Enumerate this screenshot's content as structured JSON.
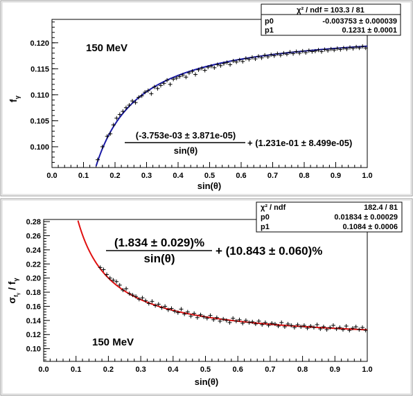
{
  "chart_data": [
    {
      "type": "scatter",
      "xlabel": "sin(θ)",
      "ylabel": "f",
      "ylabel_sub": "γ",
      "xlim": [
        0.0,
        1.0
      ],
      "ylim": [
        0.096,
        0.1245
      ],
      "xticks": [
        "0.0",
        "0.1",
        "0.2",
        "0.3",
        "0.4",
        "0.5",
        "0.6",
        "0.7",
        "0.8",
        "0.9",
        "1.0"
      ],
      "yticks": [
        "0.100",
        "0.105",
        "0.110",
        "0.115",
        "0.120"
      ],
      "yticks_values": [
        0.1,
        0.105,
        0.11,
        0.115,
        0.12
      ],
      "label": "150 MeV",
      "formula_numerator": "(-3.753e-03 ± 3.871e-05)",
      "formula_denominator": "sin(θ)",
      "formula_rest": "+ (1.231e-01 ± 8.499e-05)",
      "stats": [
        {
          "name": "χ² / ndf = 103.3 / 81",
          "value": ""
        },
        {
          "name": "p0",
          "value": "-0.003753 ± 0.000039"
        },
        {
          "name": "p1",
          "value": "0.1231 ± 0.0001"
        }
      ],
      "fit": {
        "form": "p0/sin(θ) + p1",
        "p0": -0.003753,
        "p1": 0.1231,
        "color": "#1a1aa6"
      },
      "points": {
        "x": [
          0.145,
          0.16,
          0.175,
          0.185,
          0.195,
          0.205,
          0.215,
          0.225,
          0.235,
          0.245,
          0.255,
          0.265,
          0.275,
          0.285,
          0.295,
          0.305,
          0.315,
          0.325,
          0.335,
          0.345,
          0.355,
          0.365,
          0.375,
          0.385,
          0.395,
          0.405,
          0.415,
          0.425,
          0.435,
          0.445,
          0.455,
          0.465,
          0.475,
          0.485,
          0.495,
          0.505,
          0.515,
          0.525,
          0.535,
          0.545,
          0.555,
          0.565,
          0.575,
          0.585,
          0.595,
          0.605,
          0.615,
          0.625,
          0.635,
          0.645,
          0.655,
          0.665,
          0.675,
          0.685,
          0.695,
          0.705,
          0.715,
          0.725,
          0.735,
          0.745,
          0.755,
          0.765,
          0.775,
          0.785,
          0.795,
          0.805,
          0.815,
          0.825,
          0.835,
          0.845,
          0.855,
          0.865,
          0.875,
          0.885,
          0.895,
          0.905,
          0.915,
          0.925,
          0.935,
          0.945,
          0.955,
          0.965,
          0.975,
          0.985,
          0.995
        ],
        "y": [
          0.0975,
          0.1,
          0.102,
          0.1025,
          0.1042,
          0.1055,
          0.1062,
          0.1068,
          0.1075,
          0.108,
          0.1088,
          0.1085,
          0.1095,
          0.1098,
          0.1105,
          0.1108,
          0.1102,
          0.1115,
          0.1112,
          0.1118,
          0.1122,
          0.1128,
          0.112,
          0.113,
          0.1132,
          0.1135,
          0.1138,
          0.1134,
          0.1142,
          0.1145,
          0.1139,
          0.1148,
          0.1151,
          0.1147,
          0.1153,
          0.1155,
          0.1152,
          0.1158,
          0.1156,
          0.116,
          0.1162,
          0.1158,
          0.1165,
          0.1163,
          0.1167,
          0.1164,
          0.117,
          0.1168,
          0.1172,
          0.1169,
          0.1174,
          0.1171,
          0.1176,
          0.1173,
          0.1177,
          0.1175,
          0.1179,
          0.1176,
          0.118,
          0.1178,
          0.1182,
          0.1179,
          0.1183,
          0.118,
          0.1184,
          0.1181,
          0.1185,
          0.1183,
          0.1184,
          0.1186,
          0.1183,
          0.1187,
          0.1185,
          0.1188,
          0.1186,
          0.1189,
          0.1187,
          0.119,
          0.1188,
          0.1191,
          0.1189,
          0.1192,
          0.119,
          0.1193,
          0.119
        ]
      }
    },
    {
      "type": "scatter",
      "xlabel": "sin(θ)",
      "ylabel": "σ",
      "ylabel_sub_sigma": "f",
      "ylabel_sub_sigma2": "γ",
      "ylabel_rest": " / f",
      "ylabel_sub": "γ",
      "xlim": [
        0.0,
        1.0
      ],
      "ylim": [
        0.082,
        0.283
      ],
      "xticks": [
        "0.0",
        "0.1",
        "0.2",
        "0.3",
        "0.4",
        "0.5",
        "0.6",
        "0.7",
        "0.8",
        "0.9",
        "1.0"
      ],
      "yticks": [
        "0.10",
        "0.12",
        "0.14",
        "0.16",
        "0.18",
        "0.20",
        "0.22",
        "0.24",
        "0.26",
        "0.28"
      ],
      "yticks_values": [
        0.1,
        0.12,
        0.14,
        0.16,
        0.18,
        0.2,
        0.22,
        0.24,
        0.26,
        0.28
      ],
      "label": "150 MeV",
      "formula_numerator": "(1.834 ± 0.029)%",
      "formula_denominator": "sin(θ)",
      "formula_rest": "+ (10.843 ± 0.060)%",
      "stats": [
        {
          "name": "χ² / ndf",
          "value": "182.4 / 81"
        },
        {
          "name": "p0",
          "value": "0.01834 ± 0.00029"
        },
        {
          "name": "p1",
          "value": "0.1084 ± 0.0006"
        }
      ],
      "fit": {
        "form": "p0/sin(θ) + p1",
        "p0": 0.01834,
        "p1": 0.1084,
        "color": "#e01010"
      },
      "points": {
        "x": [
          0.175,
          0.185,
          0.195,
          0.205,
          0.215,
          0.225,
          0.235,
          0.245,
          0.255,
          0.265,
          0.275,
          0.285,
          0.295,
          0.305,
          0.315,
          0.325,
          0.335,
          0.345,
          0.355,
          0.365,
          0.375,
          0.385,
          0.395,
          0.405,
          0.415,
          0.425,
          0.435,
          0.445,
          0.455,
          0.465,
          0.475,
          0.485,
          0.495,
          0.505,
          0.515,
          0.525,
          0.535,
          0.545,
          0.555,
          0.565,
          0.575,
          0.585,
          0.595,
          0.605,
          0.615,
          0.625,
          0.635,
          0.645,
          0.655,
          0.665,
          0.675,
          0.685,
          0.695,
          0.705,
          0.715,
          0.725,
          0.735,
          0.745,
          0.755,
          0.765,
          0.775,
          0.785,
          0.795,
          0.805,
          0.815,
          0.825,
          0.835,
          0.845,
          0.855,
          0.865,
          0.875,
          0.885,
          0.895,
          0.905,
          0.915,
          0.925,
          0.935,
          0.945,
          0.955,
          0.965,
          0.975,
          0.985,
          0.995
        ],
        "y": [
          0.215,
          0.212,
          0.205,
          0.2,
          0.197,
          0.195,
          0.19,
          0.183,
          0.185,
          0.178,
          0.176,
          0.174,
          0.17,
          0.172,
          0.168,
          0.164,
          0.167,
          0.161,
          0.163,
          0.158,
          0.16,
          0.155,
          0.157,
          0.153,
          0.151,
          0.156,
          0.149,
          0.152,
          0.146,
          0.15,
          0.144,
          0.148,
          0.145,
          0.143,
          0.147,
          0.141,
          0.144,
          0.139,
          0.142,
          0.14,
          0.137,
          0.143,
          0.139,
          0.141,
          0.136,
          0.14,
          0.137,
          0.138,
          0.135,
          0.139,
          0.134,
          0.137,
          0.133,
          0.136,
          0.135,
          0.132,
          0.137,
          0.131,
          0.135,
          0.133,
          0.13,
          0.134,
          0.131,
          0.133,
          0.129,
          0.132,
          0.13,
          0.134,
          0.128,
          0.131,
          0.127,
          0.13,
          0.133,
          0.128,
          0.13,
          0.127,
          0.132,
          0.126,
          0.129,
          0.131,
          0.127,
          0.13,
          0.126
        ]
      }
    }
  ]
}
